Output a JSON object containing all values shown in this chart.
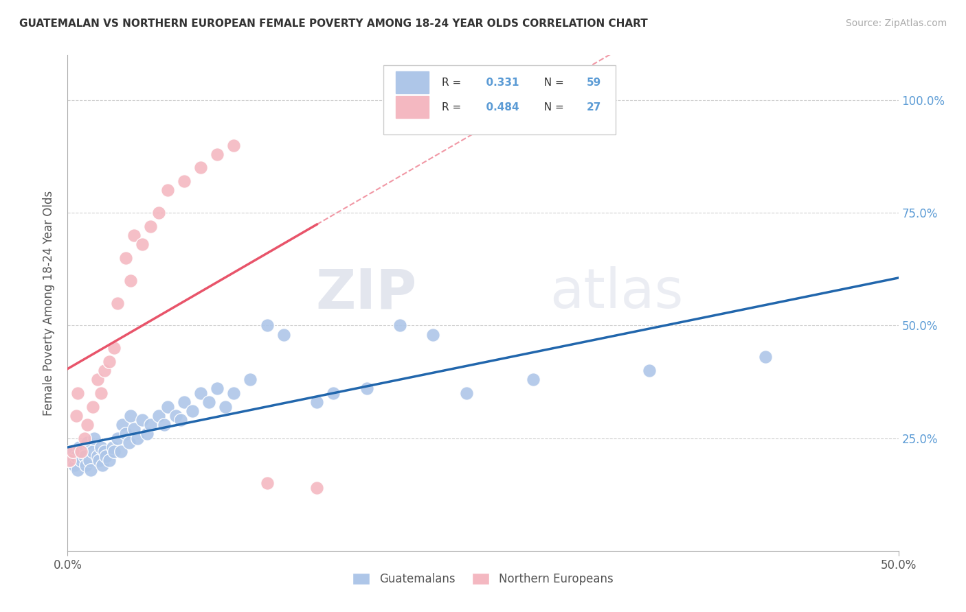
{
  "title": "GUATEMALAN VS NORTHERN EUROPEAN FEMALE POVERTY AMONG 18-24 YEAR OLDS CORRELATION CHART",
  "source": "Source: ZipAtlas.com",
  "ylabel": "Female Poverty Among 18-24 Year Olds",
  "xlim": [
    0.0,
    0.5
  ],
  "ylim": [
    0.0,
    1.1
  ],
  "xtick_positions": [
    0.0,
    0.5
  ],
  "xtick_labels": [
    "0.0%",
    "50.0%"
  ],
  "ytick_positions": [
    0.25,
    0.5,
    0.75,
    1.0
  ],
  "ytick_labels": [
    "25.0%",
    "50.0%",
    "75.0%",
    "100.0%"
  ],
  "guatemalan_color": "#aec6e8",
  "northern_european_color": "#f4b8c1",
  "guatemalan_line_color": "#2166ac",
  "northern_european_line_color": "#e8546a",
  "R_guatemalan": 0.331,
  "N_guatemalan": 59,
  "R_northern_european": 0.484,
  "N_northern_european": 27,
  "guatemalan_x": [
    0.001,
    0.002,
    0.004,
    0.005,
    0.006,
    0.007,
    0.008,
    0.009,
    0.01,
    0.011,
    0.012,
    0.013,
    0.014,
    0.015,
    0.016,
    0.018,
    0.019,
    0.02,
    0.021,
    0.022,
    0.023,
    0.025,
    0.027,
    0.028,
    0.03,
    0.032,
    0.033,
    0.035,
    0.037,
    0.038,
    0.04,
    0.042,
    0.045,
    0.048,
    0.05,
    0.055,
    0.058,
    0.06,
    0.065,
    0.068,
    0.07,
    0.075,
    0.08,
    0.085,
    0.09,
    0.095,
    0.1,
    0.11,
    0.12,
    0.13,
    0.15,
    0.16,
    0.18,
    0.2,
    0.22,
    0.24,
    0.28,
    0.35,
    0.42
  ],
  "guatemalan_y": [
    0.2,
    0.22,
    0.19,
    0.21,
    0.18,
    0.23,
    0.2,
    0.22,
    0.21,
    0.19,
    0.24,
    0.2,
    0.18,
    0.22,
    0.25,
    0.21,
    0.2,
    0.23,
    0.19,
    0.22,
    0.21,
    0.2,
    0.23,
    0.22,
    0.25,
    0.22,
    0.28,
    0.26,
    0.24,
    0.3,
    0.27,
    0.25,
    0.29,
    0.26,
    0.28,
    0.3,
    0.28,
    0.32,
    0.3,
    0.29,
    0.33,
    0.31,
    0.35,
    0.33,
    0.36,
    0.32,
    0.35,
    0.38,
    0.5,
    0.48,
    0.33,
    0.35,
    0.36,
    0.5,
    0.48,
    0.35,
    0.38,
    0.4,
    0.43
  ],
  "northern_european_x": [
    0.001,
    0.003,
    0.005,
    0.006,
    0.008,
    0.01,
    0.012,
    0.015,
    0.018,
    0.02,
    0.022,
    0.025,
    0.028,
    0.03,
    0.035,
    0.038,
    0.04,
    0.045,
    0.05,
    0.055,
    0.06,
    0.07,
    0.08,
    0.09,
    0.1,
    0.12,
    0.15
  ],
  "northern_european_y": [
    0.2,
    0.22,
    0.3,
    0.35,
    0.22,
    0.25,
    0.28,
    0.32,
    0.38,
    0.35,
    0.4,
    0.42,
    0.45,
    0.55,
    0.65,
    0.6,
    0.7,
    0.68,
    0.72,
    0.75,
    0.8,
    0.82,
    0.85,
    0.88,
    0.9,
    0.15,
    0.14
  ],
  "watermark_zip": "ZIP",
  "watermark_atlas": "atlas",
  "background_color": "#ffffff"
}
